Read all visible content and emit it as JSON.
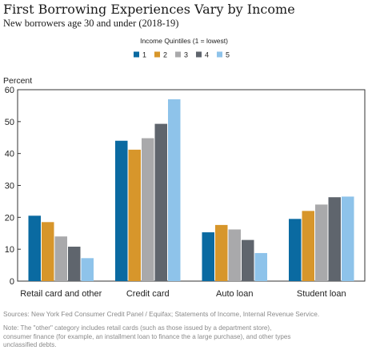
{
  "chart_data": {
    "type": "bar",
    "title": "First Borrowing Experiences Vary by Income",
    "subtitle": "New borrowers age 30 and under (2018-19)",
    "ylabel": "Percent",
    "xlabel": "",
    "ylim": [
      0,
      60
    ],
    "yticks": [
      0,
      10,
      20,
      30,
      40,
      50,
      60
    ],
    "grid": false,
    "legend_title": "Income Quintiles (1 = lowest)",
    "legend_position": "top-center",
    "categories": [
      "Retail card and other",
      "Credit card",
      "Auto loan",
      "Student loan"
    ],
    "series": [
      {
        "name": "1",
        "color": "#0a6aa1",
        "values": [
          20.5,
          44,
          15.3,
          19.5
        ]
      },
      {
        "name": "2",
        "color": "#d7962b",
        "values": [
          18.5,
          41.2,
          17.6,
          22
        ]
      },
      {
        "name": "3",
        "color": "#a9a9ab",
        "values": [
          14,
          44.8,
          16.2,
          24
        ]
      },
      {
        "name": "4",
        "color": "#5f656d",
        "values": [
          10.8,
          49.3,
          12.9,
          26.3
        ]
      },
      {
        "name": "5",
        "color": "#8ec3ea",
        "values": [
          7.2,
          57,
          8.8,
          26.5
        ]
      }
    ],
    "source": "Sources: New York Fed Consumer Credit Panel / Equifax; Statements of Income, Internal Revenue Service.",
    "note_lines": [
      "Note: The \"other\" category includes retail cards (such as those issued by a department store),",
      "consumer finance (for example, an installment loan to finance the a large purchase), and other types",
      "unclassified debts."
    ]
  }
}
